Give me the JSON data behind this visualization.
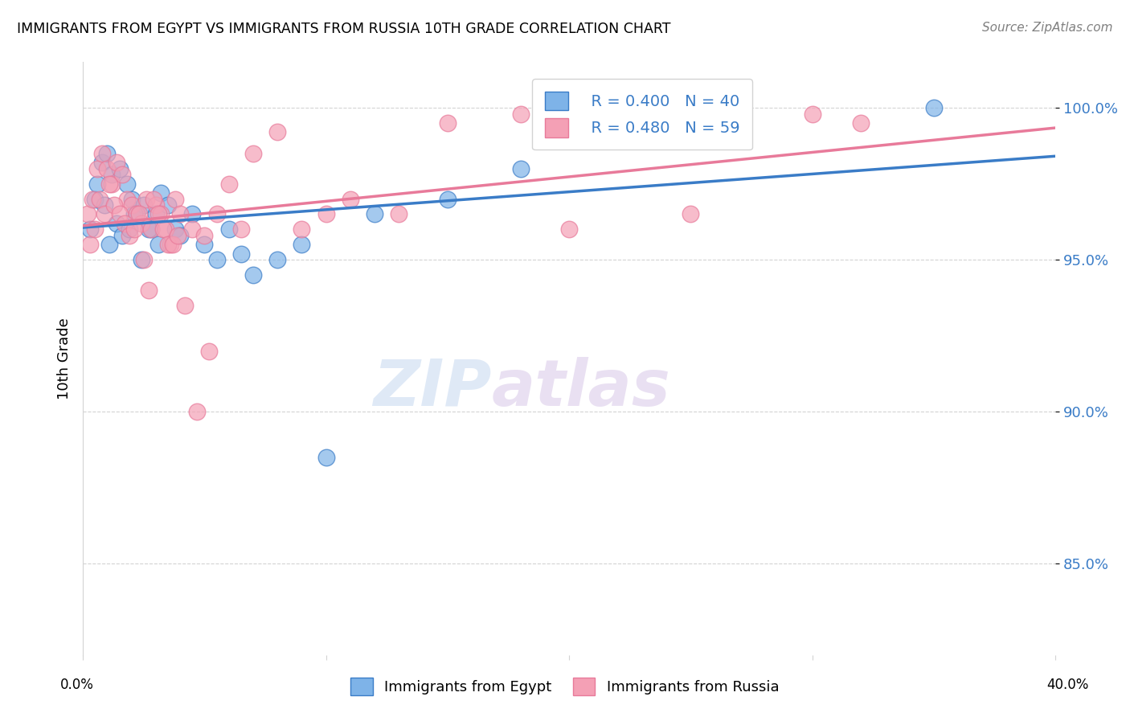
{
  "title": "IMMIGRANTS FROM EGYPT VS IMMIGRANTS FROM RUSSIA 10TH GRADE CORRELATION CHART",
  "source": "Source: ZipAtlas.com",
  "ylabel": "10th Grade",
  "y_ticks": [
    85.0,
    90.0,
    95.0,
    100.0
  ],
  "y_tick_labels": [
    "85.0%",
    "90.0%",
    "95.0%",
    "100.0%"
  ],
  "xlim": [
    0.0,
    40.0
  ],
  "ylim": [
    82.0,
    101.5
  ],
  "egypt_color": "#7eb3e8",
  "russia_color": "#f4a0b5",
  "egypt_line_color": "#3a7cc7",
  "russia_line_color": "#e87a9a",
  "legend_R_egypt": "R = 0.400",
  "legend_N_egypt": "N = 40",
  "legend_R_russia": "R = 0.480",
  "legend_N_russia": "N = 59",
  "watermark_zip": "ZIP",
  "watermark_atlas": "atlas",
  "egypt_x": [
    0.5,
    0.8,
    1.0,
    1.2,
    1.5,
    1.8,
    2.0,
    2.2,
    2.5,
    2.8,
    3.0,
    3.2,
    3.5,
    3.8,
    4.0,
    4.5,
    5.0,
    5.5,
    6.0,
    6.5,
    7.0,
    8.0,
    9.0,
    10.0,
    12.0,
    15.0,
    18.0,
    22.0,
    35.0,
    0.3,
    0.6,
    0.9,
    1.1,
    1.4,
    1.6,
    1.9,
    2.1,
    2.4,
    2.7,
    3.1
  ],
  "egypt_y": [
    97.0,
    98.2,
    98.5,
    97.8,
    98.0,
    97.5,
    97.0,
    96.5,
    96.8,
    96.0,
    96.5,
    97.2,
    96.8,
    96.0,
    95.8,
    96.5,
    95.5,
    95.0,
    96.0,
    95.2,
    94.5,
    95.0,
    95.5,
    88.5,
    96.5,
    97.0,
    98.0,
    99.5,
    100.0,
    96.0,
    97.5,
    96.8,
    95.5,
    96.2,
    95.8,
    96.0,
    96.5,
    95.0,
    96.0,
    95.5
  ],
  "russia_x": [
    0.2,
    0.4,
    0.6,
    0.8,
    1.0,
    1.2,
    1.4,
    1.6,
    1.8,
    2.0,
    2.2,
    2.4,
    2.6,
    2.8,
    3.0,
    3.2,
    3.4,
    3.6,
    3.8,
    4.0,
    4.5,
    5.0,
    5.5,
    6.0,
    6.5,
    7.0,
    8.0,
    9.0,
    10.0,
    11.0,
    13.0,
    15.0,
    18.0,
    20.0,
    25.0,
    30.0,
    32.0,
    0.3,
    0.5,
    0.7,
    0.9,
    1.1,
    1.3,
    1.5,
    1.7,
    1.9,
    2.1,
    2.3,
    2.5,
    2.7,
    2.9,
    3.1,
    3.3,
    3.5,
    3.7,
    3.9,
    4.2,
    4.7,
    5.2
  ],
  "russia_y": [
    96.5,
    97.0,
    98.0,
    98.5,
    98.0,
    97.5,
    98.2,
    97.8,
    97.0,
    96.8,
    96.5,
    96.2,
    97.0,
    96.0,
    96.8,
    96.5,
    96.0,
    95.5,
    97.0,
    96.5,
    96.0,
    95.8,
    96.5,
    97.5,
    96.0,
    98.5,
    99.2,
    96.0,
    96.5,
    97.0,
    96.5,
    99.5,
    99.8,
    96.0,
    96.5,
    99.8,
    99.5,
    95.5,
    96.0,
    97.0,
    96.5,
    97.5,
    96.8,
    96.5,
    96.2,
    95.8,
    96.0,
    96.5,
    95.0,
    94.0,
    97.0,
    96.5,
    96.0,
    95.5,
    95.5,
    95.8,
    93.5,
    90.0,
    92.0
  ]
}
